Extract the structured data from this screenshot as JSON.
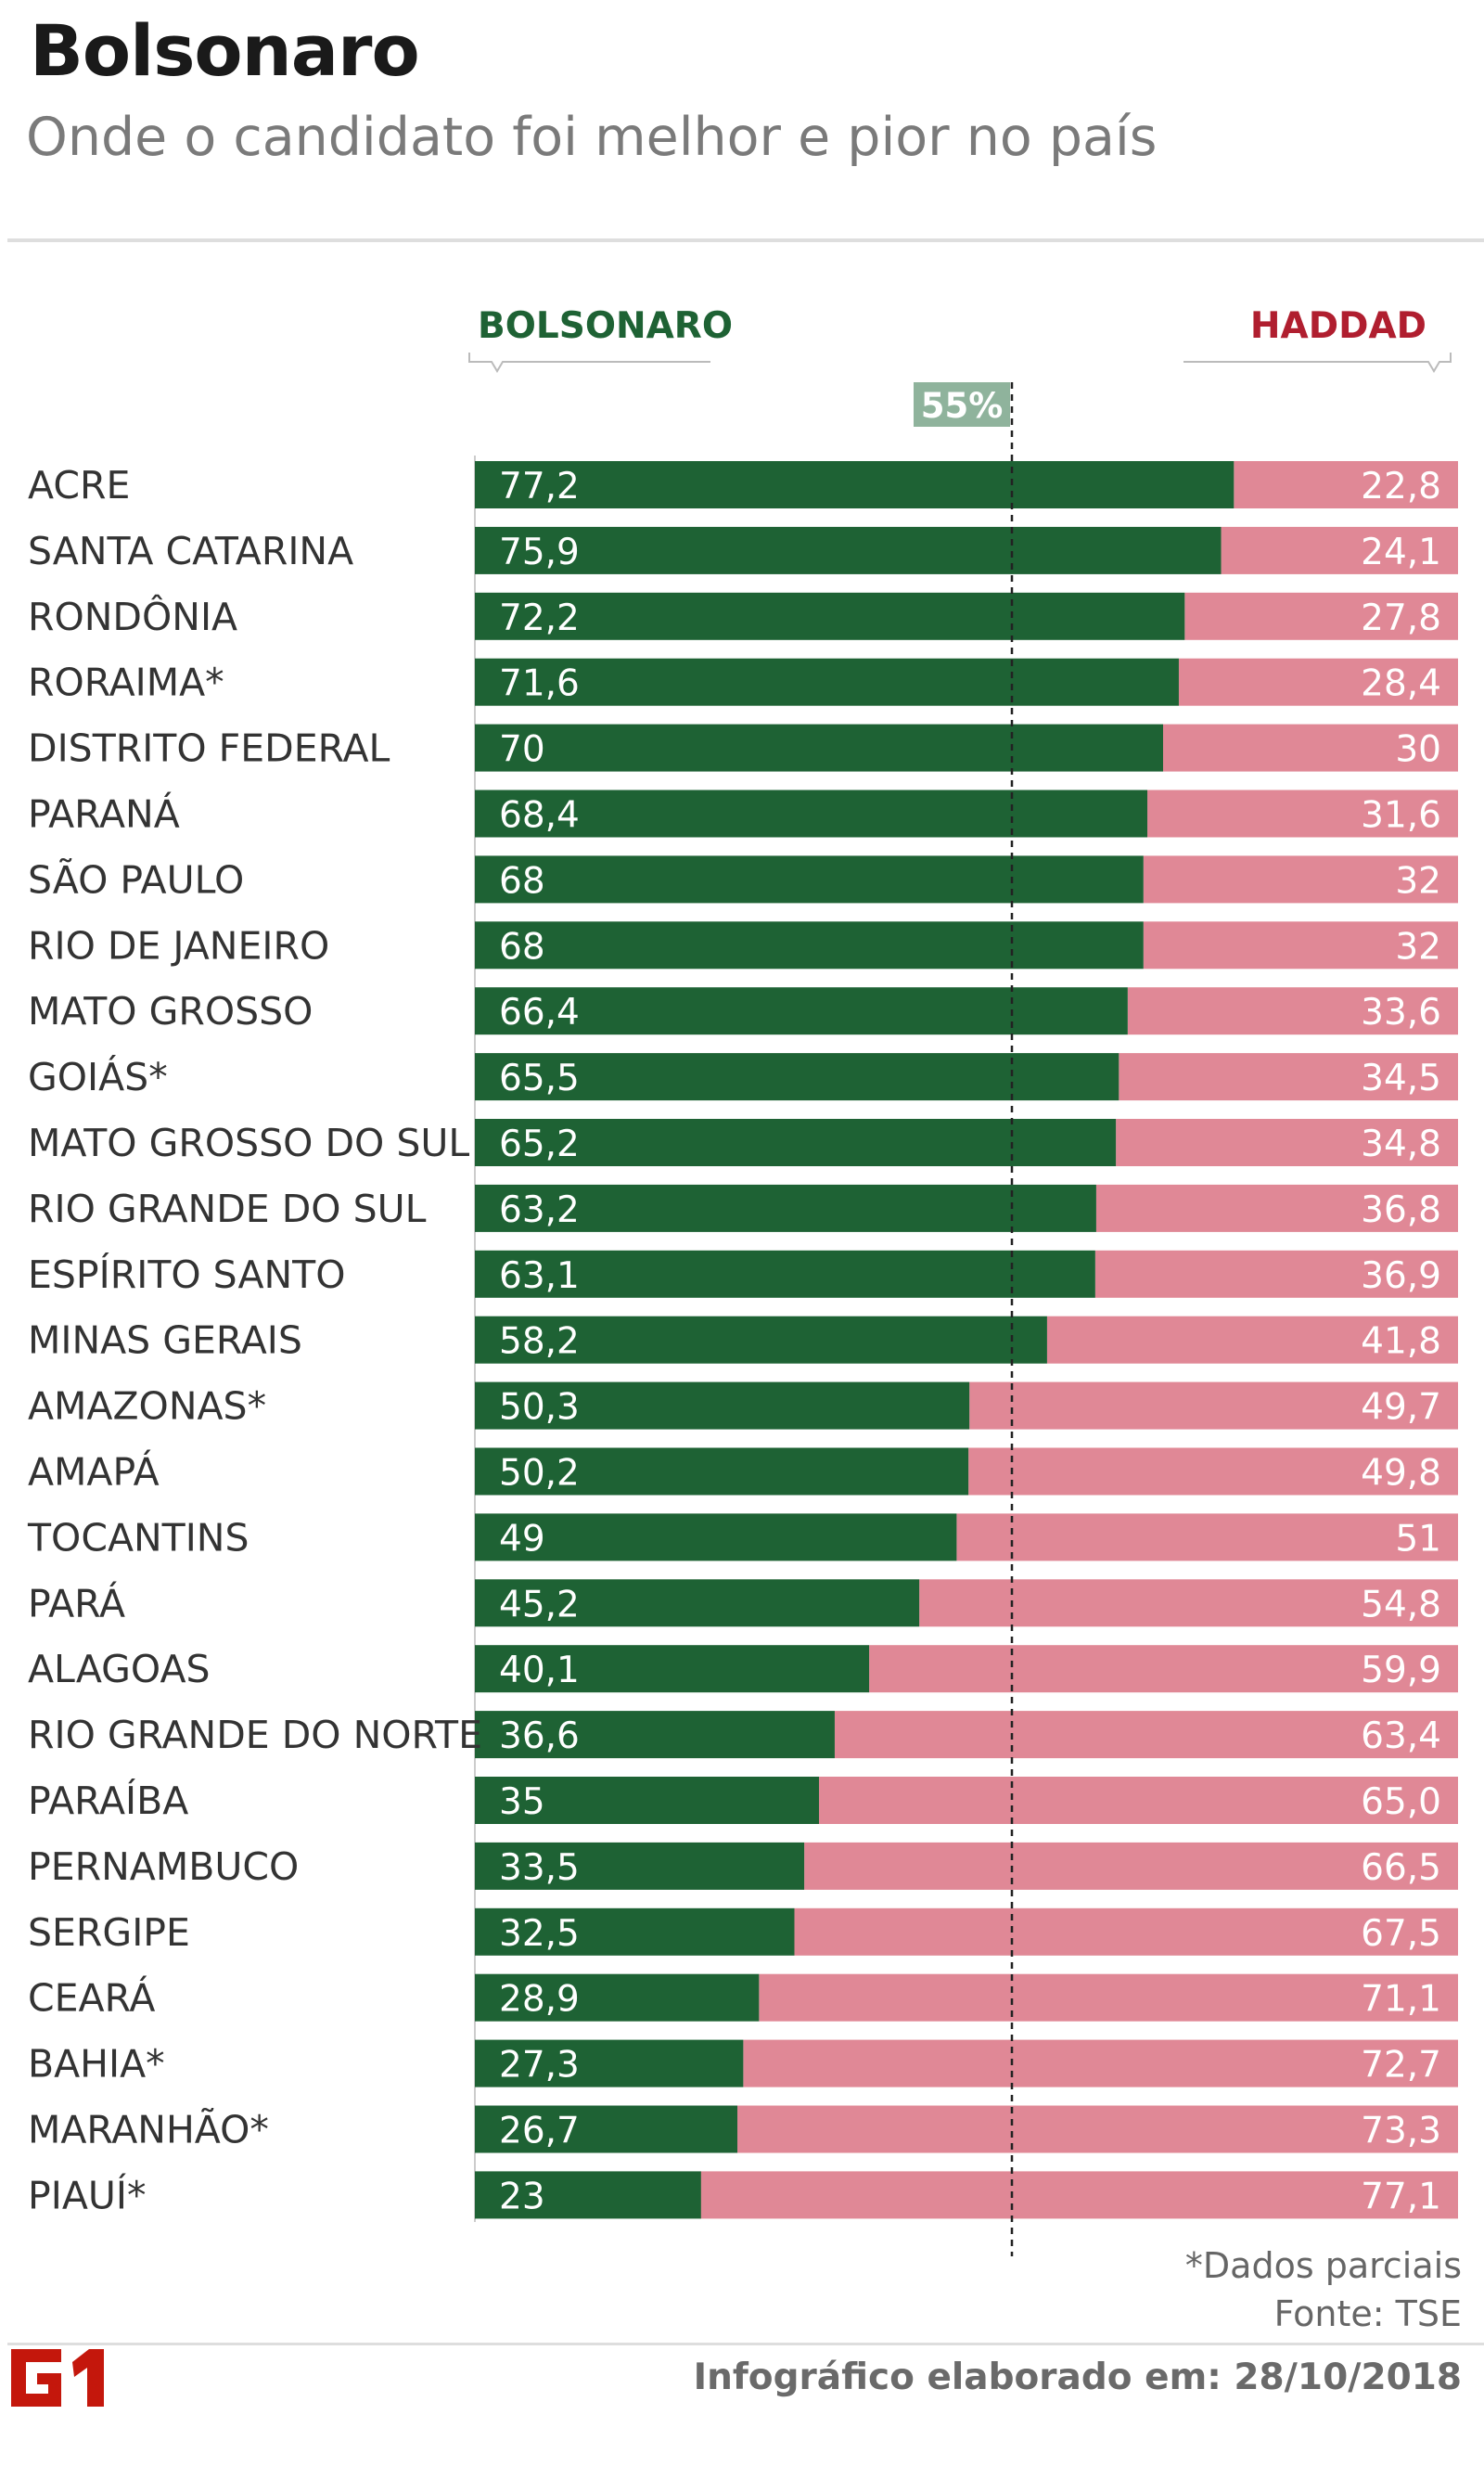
{
  "header": {
    "title": "Bolsonaro",
    "subtitle": "Onde o candidato foi melhor e pior no país"
  },
  "legend": {
    "left_label": "BOLSONARO",
    "right_label": "HADDAD",
    "left_color": "#1e6234",
    "right_color": "#e08896"
  },
  "reference": {
    "label": "55%",
    "value": 55,
    "color": "#8fb39c"
  },
  "chart_data": {
    "type": "bar",
    "orientation": "horizontal",
    "stacked": true,
    "xlim": [
      0,
      100
    ],
    "categories": [
      "ACRE",
      "SANTA CATARINA",
      "RONDÔNIA",
      "RORAIMA*",
      "DISTRITO FEDERAL",
      "PARANÁ",
      "SÃO PAULO",
      "RIO DE JANEIRO",
      "MATO GROSSO",
      "GOIÁS*",
      "MATO GROSSO DO SUL",
      "RIO GRANDE DO SUL",
      "ESPÍRITO SANTO",
      "MINAS GERAIS",
      "AMAZONAS*",
      "AMAPÁ",
      "TOCANTINS",
      "PARÁ",
      "ALAGOAS",
      "RIO GRANDE DO NORTE",
      "PARAÍBA",
      "PERNAMBUCO",
      "SERGIPE",
      "CEARÁ",
      "BAHIA*",
      "MARANHÃO*",
      "PIAUÍ*"
    ],
    "series": [
      {
        "name": "BOLSONARO",
        "values": [
          77.2,
          75.9,
          72.2,
          71.6,
          70,
          68.4,
          68,
          68,
          66.4,
          65.5,
          65.2,
          63.2,
          63.1,
          58.2,
          50.3,
          50.2,
          49,
          45.2,
          40.1,
          36.6,
          35,
          33.5,
          32.5,
          28.9,
          27.3,
          26.7,
          23
        ],
        "labels": [
          "77,2",
          "75,9",
          "72,2",
          "71,6",
          "70",
          "68,4",
          "68",
          "68",
          "66,4",
          "65,5",
          "65,2",
          "63,2",
          "63,1",
          "58,2",
          "50,3",
          "50,2",
          "49",
          "45,2",
          "40,1",
          "36,6",
          "35",
          "33,5",
          "32,5",
          "28,9",
          "27,3",
          "26,7",
          "23"
        ]
      },
      {
        "name": "HADDAD",
        "values": [
          22.8,
          24.1,
          27.8,
          28.4,
          30,
          31.6,
          32,
          32,
          33.6,
          34.5,
          34.8,
          36.8,
          36.9,
          41.8,
          49.7,
          49.8,
          51,
          54.8,
          59.9,
          63.4,
          65.0,
          66.5,
          67.5,
          71.1,
          72.7,
          73.3,
          77.1
        ],
        "labels": [
          "22,8",
          "24,1",
          "27,8",
          "28,4",
          "30",
          "31,6",
          "32",
          "32",
          "33,6",
          "34,5",
          "34,8",
          "36,8",
          "36,9",
          "41,8",
          "49,7",
          "49,8",
          "51",
          "54,8",
          "59,9",
          "63,4",
          "65,0",
          "66,5",
          "67,5",
          "71,1",
          "72,7",
          "73,3",
          "77,1"
        ]
      }
    ]
  },
  "footer": {
    "note": "*Dados parciais",
    "source": "Fonte: TSE",
    "credit": "Infográfico elaborado em: 28/10/2018",
    "logo_text": "G1",
    "logo_color": "#c4170c"
  }
}
